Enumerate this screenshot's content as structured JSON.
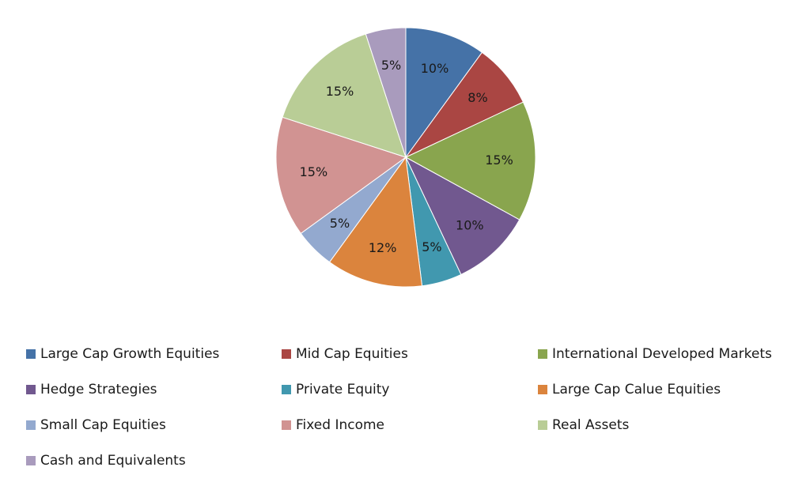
{
  "chart_data": {
    "type": "pie",
    "title": "",
    "legend_position": "bottom",
    "slices": [
      {
        "name": "Large Cap Growth Equities",
        "value": 10,
        "label": "10%",
        "color": "#4572a7"
      },
      {
        "name": "Mid Cap Equities",
        "value": 8,
        "label": "8%",
        "color": "#aa4643"
      },
      {
        "name": "International Developed Markets",
        "value": 15,
        "label": "15%",
        "color": "#89a54e"
      },
      {
        "name": "Hedge Strategies",
        "value": 10,
        "label": "10%",
        "color": "#71588f"
      },
      {
        "name": "Private Equity",
        "value": 5,
        "label": "5%",
        "color": "#4198af"
      },
      {
        "name": "Large Cap Calue Equities",
        "value": 12,
        "label": "12%",
        "color": "#db843d"
      },
      {
        "name": "Small Cap Equities",
        "value": 5,
        "label": "5%",
        "color": "#93a9cf"
      },
      {
        "name": "Fixed Income",
        "value": 15,
        "label": "15%",
        "color": "#d19392"
      },
      {
        "name": "Real Assets",
        "value": 15,
        "label": "15%",
        "color": "#b9cd96"
      },
      {
        "name": "Cash and Equivalents",
        "value": 5,
        "label": "5%",
        "color": "#a99bbd"
      }
    ]
  }
}
